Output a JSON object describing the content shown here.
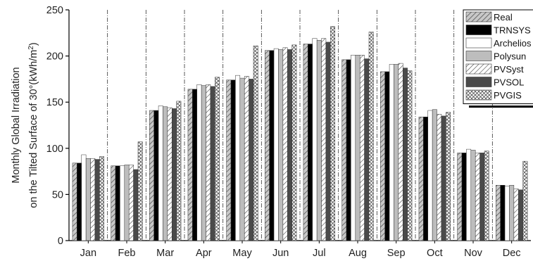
{
  "chart_data": {
    "type": "bar",
    "ylabel_line1": "Monthly Global Irradiation",
    "ylabel_line2_prefix": "on the Tilted Surface of 30°(kWh/m",
    "ylabel_sup": "2",
    "ylabel_line2_suffix": ")",
    "ylim": [
      0,
      250
    ],
    "yticks": [
      0,
      50,
      100,
      150,
      200,
      250
    ],
    "categories": [
      "Jan",
      "Feb",
      "Mar",
      "Apr",
      "May",
      "Jun",
      "Jul",
      "Aug",
      "Sep",
      "Oct",
      "Nov",
      "Dec"
    ],
    "legend_position": "top-right",
    "series": [
      {
        "name": "Real",
        "pattern": "hatch-gray",
        "values": [
          84,
          81,
          141,
          164,
          174,
          206,
          213,
          196,
          183,
          134,
          95,
          60
        ]
      },
      {
        "name": "TRNSYS",
        "pattern": "solid-black",
        "values": [
          84,
          81,
          141,
          164,
          174,
          206,
          213,
          196,
          183,
          134,
          95,
          60
        ]
      },
      {
        "name": "Archelios",
        "pattern": "white",
        "values": [
          93,
          81,
          146,
          169,
          179,
          208,
          219,
          201,
          191,
          141,
          99,
          59
        ]
      },
      {
        "name": "Polysun",
        "pattern": "light-gray",
        "values": [
          89,
          82,
          145,
          168,
          176,
          207,
          217,
          201,
          191,
          142,
          98,
          60
        ]
      },
      {
        "name": "PVSyst",
        "pattern": "hatch-white",
        "values": [
          89,
          82,
          144,
          169,
          178,
          209,
          219,
          201,
          192,
          137,
          95,
          56
        ]
      },
      {
        "name": "PVSOL",
        "pattern": "dark-gray",
        "values": [
          88,
          77,
          143,
          167,
          175,
          207,
          215,
          197,
          187,
          135,
          95,
          55
        ]
      },
      {
        "name": "PVGIS",
        "pattern": "crosshatch",
        "values": [
          91,
          107,
          151,
          177,
          211,
          212,
          232,
          226,
          184,
          139,
          97,
          86
        ]
      }
    ]
  }
}
